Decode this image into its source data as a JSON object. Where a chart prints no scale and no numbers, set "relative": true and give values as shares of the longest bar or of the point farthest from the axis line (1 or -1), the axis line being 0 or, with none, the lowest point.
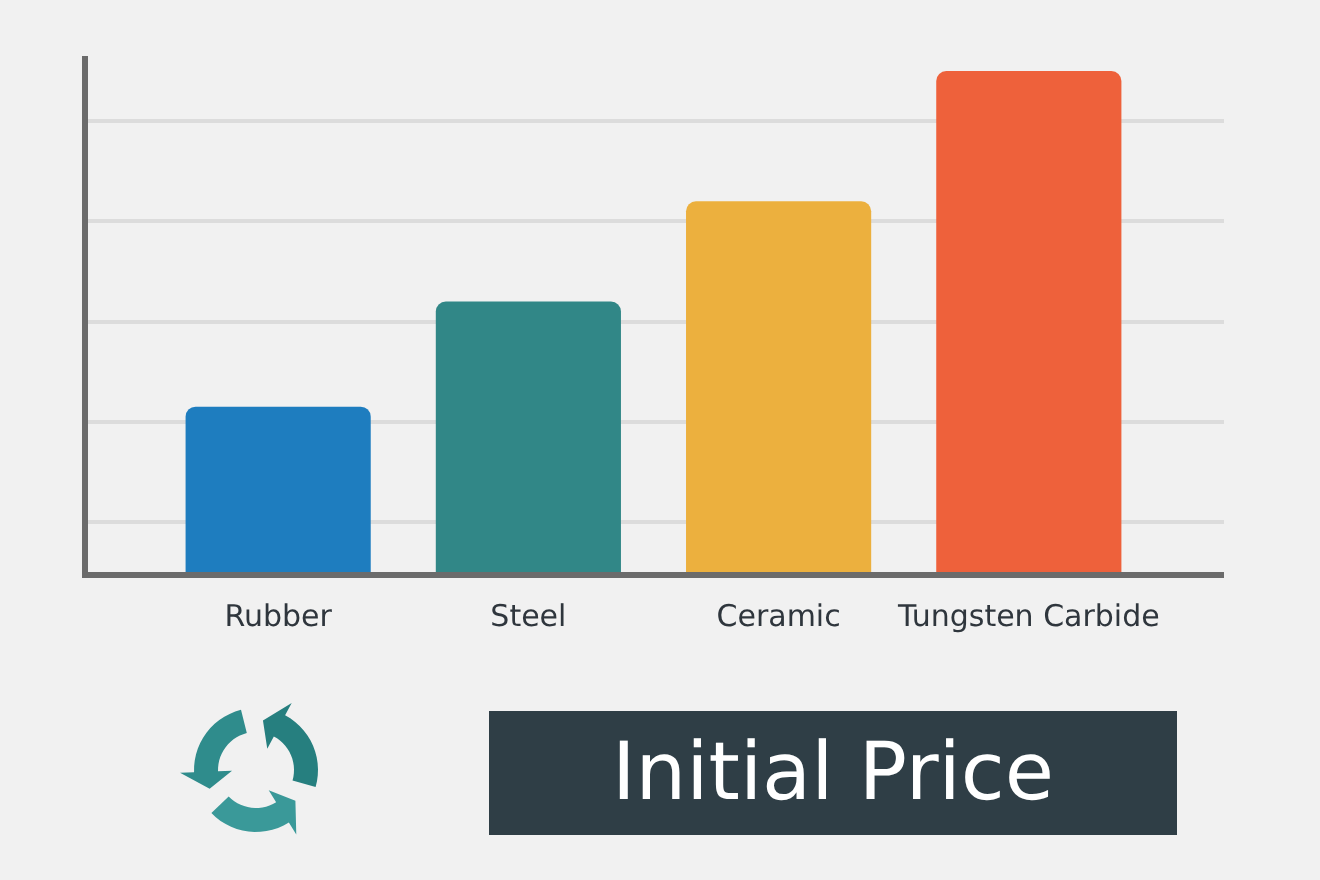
{
  "chart_data": {
    "type": "bar",
    "title": "Initial Price",
    "categories": [
      "Rubber",
      "Steel",
      "Ceramic",
      "Tungsten Carbide"
    ],
    "values": [
      0.33,
      0.54,
      0.74,
      1
    ],
    "colors": [
      "#1e7dbf",
      "#318787",
      "#ecb03e",
      "#ee613b"
    ],
    "relative": true,
    "grid": "y"
  }
}
